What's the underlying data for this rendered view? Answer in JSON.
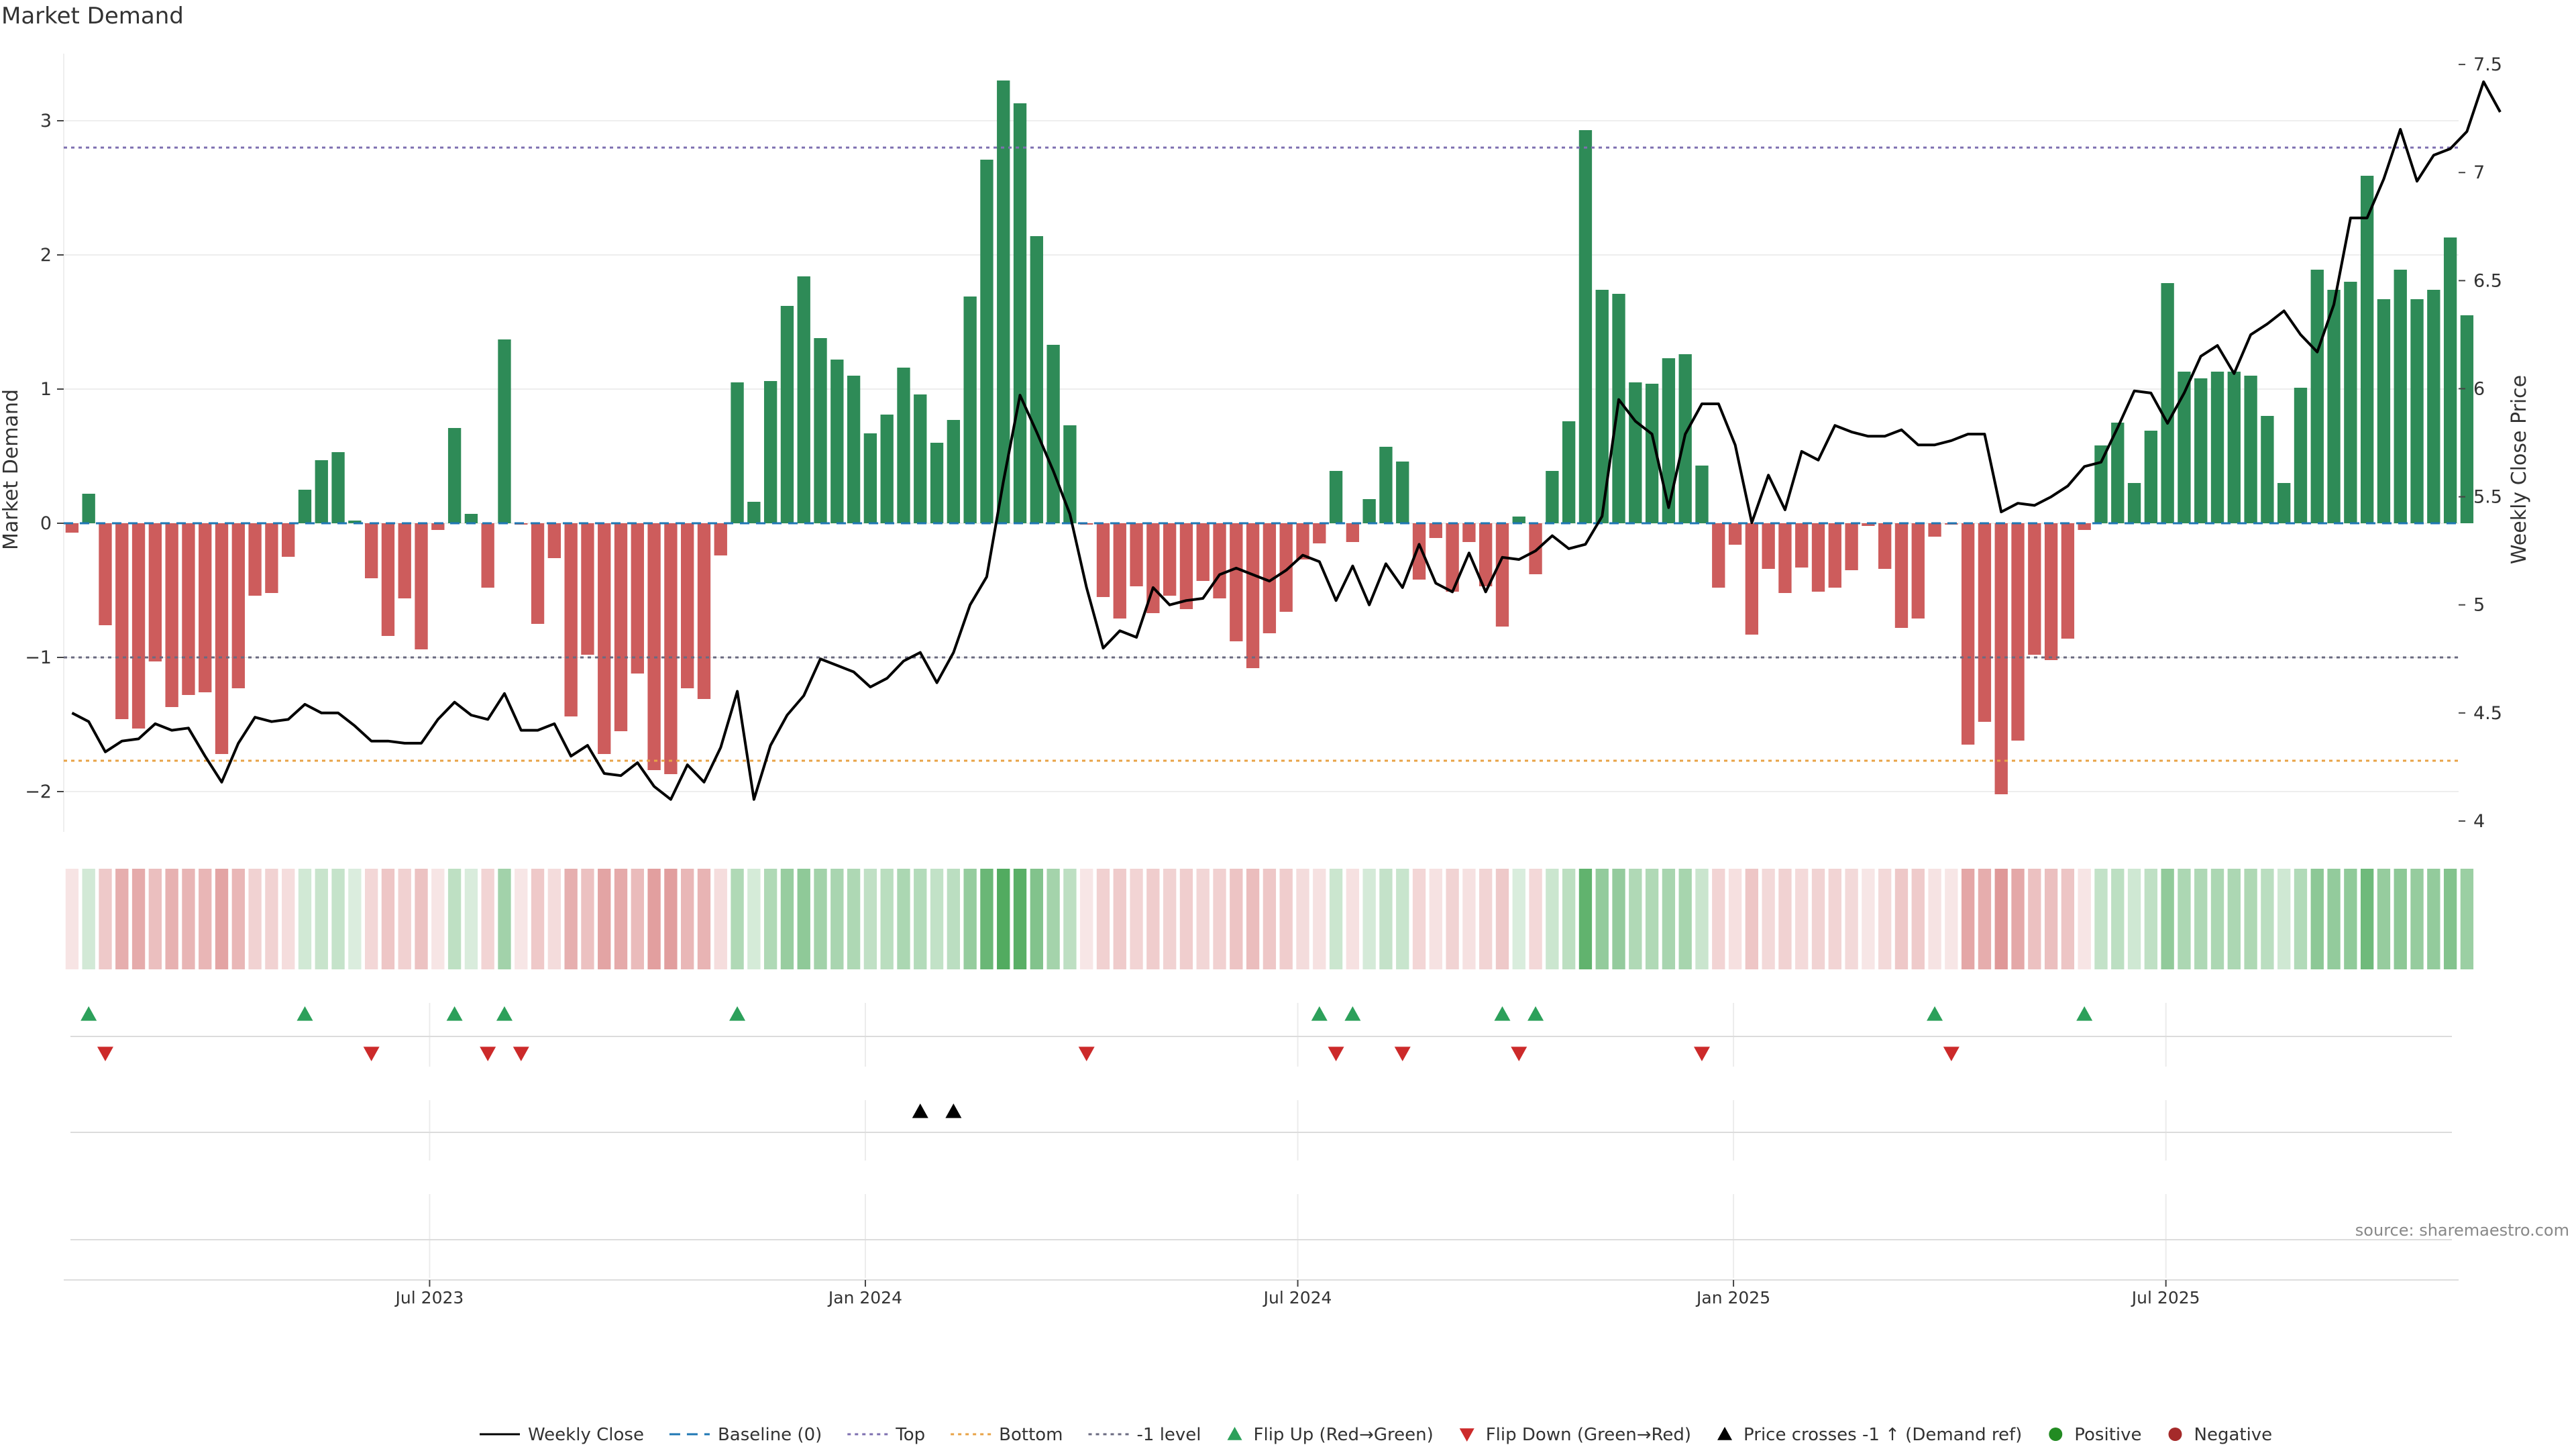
{
  "chart_data": {
    "type": "bar",
    "title": "Market Demand",
    "source": "source: sharemaestro.com",
    "ylabel_left": "Market Demand",
    "ylabel_right": "Weekly Close Price",
    "ylim_left": [
      -2.3,
      3.5
    ],
    "ylim_right": [
      3.95,
      7.55
    ],
    "yticks_left": [
      "3",
      "2",
      "1",
      "0",
      "−1",
      "−2"
    ],
    "yticks_right": [
      "7.5",
      "7",
      "6.5",
      "6",
      "5.5",
      "5",
      "4.5",
      "4"
    ],
    "xticks": [
      {
        "label": "Jul 2023",
        "week": 21.5
      },
      {
        "label": "Jan 2024",
        "week": 47.7
      },
      {
        "label": "Jul 2024",
        "week": 73.7
      },
      {
        "label": "Jan 2025",
        "week": 99.9
      },
      {
        "label": "Jul 2025",
        "week": 125.9
      }
    ],
    "weeks": 144,
    "levels": {
      "top": 2.8,
      "bottom": -1.77,
      "minus_one": -1.0,
      "baseline": 0
    },
    "demand": [
      -0.07,
      0.22,
      -0.76,
      -1.46,
      -1.53,
      -1.03,
      -1.37,
      -1.28,
      -1.26,
      -1.72,
      -1.23,
      -0.54,
      -0.52,
      -0.25,
      0.25,
      0.47,
      0.53,
      0.02,
      -0.41,
      -0.84,
      -0.56,
      -0.94,
      -0.05,
      0.71,
      0.07,
      -0.48,
      1.37,
      -0.01,
      -0.75,
      -0.26,
      -1.44,
      -0.98,
      -1.72,
      -1.55,
      -1.12,
      -1.84,
      -1.87,
      -1.23,
      -1.31,
      -0.24,
      1.05,
      0.16,
      1.06,
      1.62,
      1.84,
      1.38,
      1.22,
      1.1,
      0.67,
      0.81,
      1.16,
      0.96,
      0.6,
      0.77,
      1.69,
      2.71,
      3.3,
      3.13,
      2.14,
      1.33,
      0.73,
      -0.01,
      -0.55,
      -0.71,
      -0.47,
      -0.67,
      -0.54,
      -0.64,
      -0.43,
      -0.56,
      -0.88,
      -1.08,
      -0.82,
      -0.66,
      -0.27,
      -0.15,
      0.39,
      -0.14,
      0.18,
      0.57,
      0.46,
      -0.42,
      -0.11,
      -0.51,
      -0.14,
      -0.47,
      -0.77,
      0.05,
      -0.38,
      0.39,
      0.76,
      2.93,
      1.74,
      1.71,
      1.05,
      1.04,
      1.23,
      1.26,
      0.43,
      -0.48,
      -0.16,
      -0.83,
      -0.34,
      -0.52,
      -0.33,
      -0.51,
      -0.48,
      -0.35,
      -0.02,
      -0.34,
      -0.78,
      -0.71,
      -0.1,
      -0.01,
      -1.65,
      -1.48,
      -2.02,
      -1.62,
      -0.98,
      -1.02,
      -0.86,
      -0.05,
      0.58,
      0.75,
      0.3,
      0.69,
      1.79,
      1.13,
      1.08,
      1.13,
      1.13,
      1.1,
      0.8,
      0.3,
      1.01,
      1.89,
      1.74,
      1.8,
      2.59,
      1.67,
      1.89,
      1.67,
      1.74,
      2.13,
      1.55
    ],
    "close": [
      4.5,
      4.46,
      4.32,
      4.37,
      4.38,
      4.45,
      4.42,
      4.43,
      4.3,
      4.18,
      4.36,
      4.48,
      4.46,
      4.47,
      4.54,
      4.5,
      4.5,
      4.44,
      4.37,
      4.37,
      4.36,
      4.36,
      4.47,
      4.55,
      4.49,
      4.47,
      4.59,
      4.42,
      4.42,
      4.45,
      4.3,
      4.35,
      4.22,
      4.21,
      4.27,
      4.16,
      4.1,
      4.26,
      4.18,
      4.34,
      4.6,
      4.1,
      4.35,
      4.49,
      4.58,
      4.75,
      4.72,
      4.69,
      4.62,
      4.66,
      4.74,
      4.78,
      4.64,
      4.78,
      5.0,
      5.13,
      5.57,
      5.97,
      5.8,
      5.62,
      5.42,
      5.08,
      4.8,
      4.88,
      4.85,
      5.08,
      5.0,
      5.02,
      5.03,
      5.14,
      5.17,
      5.14,
      5.11,
      5.16,
      5.23,
      5.2,
      5.02,
      5.18,
      5.0,
      5.19,
      5.08,
      5.28,
      5.1,
      5.06,
      5.24,
      5.06,
      5.22,
      5.21,
      5.25,
      5.32,
      5.26,
      5.28,
      5.41,
      5.95,
      5.85,
      5.79,
      5.45,
      5.79,
      5.93,
      5.93,
      5.74,
      5.38,
      5.6,
      5.44,
      5.71,
      5.67,
      5.83,
      5.8,
      5.78,
      5.78,
      5.81,
      5.74,
      5.74,
      5.76,
      5.79,
      5.79,
      5.43,
      5.47,
      5.46,
      5.5,
      5.55,
      5.64,
      5.66,
      5.82,
      5.99,
      5.98,
      5.84,
      5.98,
      6.15,
      6.2,
      6.07,
      6.25,
      6.3,
      6.36,
      6.25,
      6.17,
      6.39,
      6.79,
      6.79,
      6.97,
      7.2,
      6.96,
      7.08,
      7.11,
      7.19,
      7.42,
      7.28
    ],
    "flip_up_weeks": [
      1,
      14,
      23,
      26,
      40,
      75,
      77,
      86,
      88,
      112,
      121
    ],
    "flip_down_weeks": [
      2,
      18,
      25,
      27,
      61,
      76,
      80,
      87,
      98,
      113
    ],
    "price_cross_weeks": [
      51,
      53
    ],
    "legend": [
      "Weekly Close",
      "Baseline (0)",
      "Top",
      "Bottom",
      "-1 level",
      "Flip Up (Red→Green)",
      "Flip Down (Green→Red)",
      "Price crosses -1 ↑ (Demand ref)",
      "Positive",
      "Negative"
    ],
    "colors": {
      "positive": "#2e8b57",
      "negative": "#cd5c5c",
      "close": "#000000",
      "baseline": "#1f77b4",
      "top": "#7e6fb0",
      "bottom": "#e8a346",
      "minus_one": "#6a6a80",
      "flip_up": "#2ca05a",
      "flip_down": "#cc2a2a",
      "cross": "#000000",
      "legend_positive": "#228b22",
      "legend_negative": "#a52a2a"
    }
  }
}
